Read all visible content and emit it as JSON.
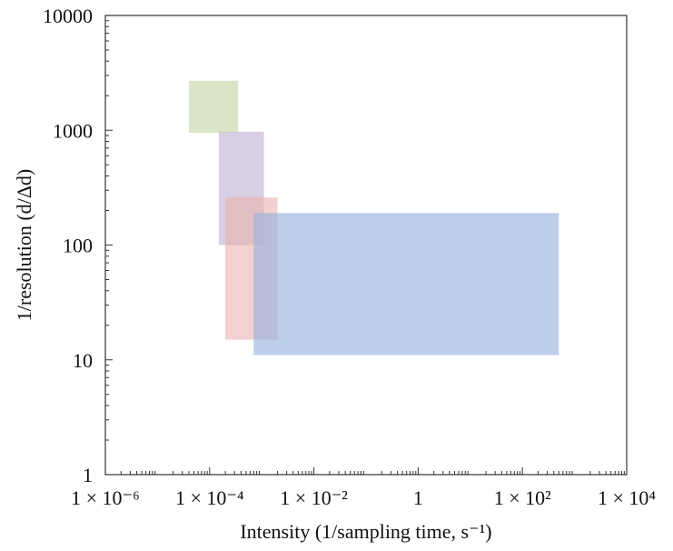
{
  "chart_data": {
    "type": "area",
    "title": "",
    "xlabel": "Intensity (1/sampling time, s⁻¹)",
    "ylabel": "1/resolution (d/Δd)",
    "xscale": "log",
    "yscale": "log",
    "xlim": [
      1e-06,
      10000
    ],
    "ylim": [
      1,
      10000
    ],
    "grid": false,
    "legend": "none",
    "x_ticks": [
      {
        "value": 1e-06,
        "label": "1 × 10⁻⁶"
      },
      {
        "value": 0.0001,
        "label": "1 × 10⁻⁴"
      },
      {
        "value": 0.01,
        "label": "1 × 10⁻²"
      },
      {
        "value": 1,
        "label": "1"
      },
      {
        "value": 100,
        "label": "1 × 10²"
      },
      {
        "value": 10000,
        "label": "1 × 10⁴"
      }
    ],
    "y_ticks": [
      {
        "value": 1,
        "label": "1"
      },
      {
        "value": 10,
        "label": "10"
      },
      {
        "value": 100,
        "label": "100"
      },
      {
        "value": 1000,
        "label": "1000"
      },
      {
        "value": 10000,
        "label": "10000"
      }
    ],
    "regions": [
      {
        "x": [
          4e-05,
          0.00035
        ],
        "y": [
          950,
          2700
        ],
        "color": "#d6e2c2",
        "opacity": 0.9
      },
      {
        "x": [
          0.00015,
          0.0011
        ],
        "y": [
          100,
          970
        ],
        "color": "#cbbfdb",
        "opacity": 0.75
      },
      {
        "x": [
          0.0002,
          0.002
        ],
        "y": [
          15,
          260
        ],
        "color": "#eab3ae",
        "opacity": 0.6
      },
      {
        "x": [
          0.0007,
          500
        ],
        "y": [
          11,
          190
        ],
        "color": "#98b4db",
        "opacity": 0.65
      }
    ]
  }
}
